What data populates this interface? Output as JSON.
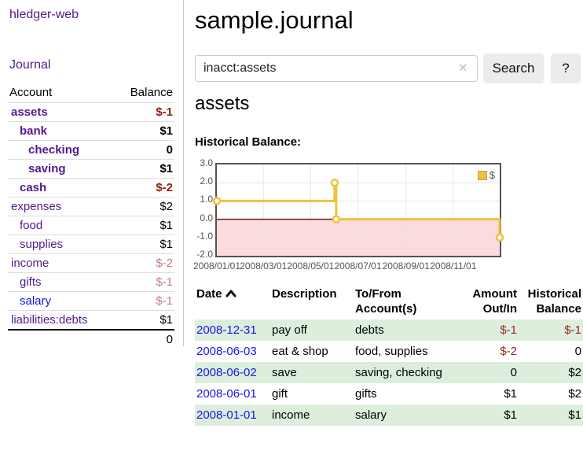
{
  "sidebar": {
    "app_title": "hledger-web",
    "journal_link": "Journal",
    "table": {
      "account_header": "Account",
      "balance_header": "Balance",
      "accounts": [
        {
          "name": "assets",
          "indent": 0,
          "bold": true,
          "balance": "$-1",
          "balance_style": "neg"
        },
        {
          "name": "bank",
          "indent": 1,
          "bold": true,
          "balance": "$1",
          "balance_style": ""
        },
        {
          "name": "checking",
          "indent": 2,
          "bold": true,
          "balance": "0",
          "balance_style": ""
        },
        {
          "name": "saving",
          "indent": 2,
          "bold": true,
          "balance": "$1",
          "balance_style": ""
        },
        {
          "name": "cash",
          "indent": 1,
          "bold": true,
          "balance": "$-2",
          "balance_style": "neg"
        },
        {
          "name": "expenses",
          "indent": 0,
          "bold": false,
          "balance": "$2",
          "balance_style": ""
        },
        {
          "name": "food",
          "indent": 1,
          "bold": false,
          "balance": "$1",
          "balance_style": ""
        },
        {
          "name": "supplies",
          "indent": 1,
          "bold": false,
          "balance": "$1",
          "balance_style": ""
        },
        {
          "name": "income",
          "indent": 0,
          "bold": false,
          "balance": "$-2",
          "balance_style": "neg-soft"
        },
        {
          "name": "gifts",
          "indent": 1,
          "bold": false,
          "balance": "$-1",
          "balance_style": "neg-soft"
        },
        {
          "name": "salary",
          "indent": 1,
          "bold": false,
          "balance": "$-1",
          "balance_style": "neg-soft",
          "link_blue": true
        },
        {
          "name": "liabilities:debts",
          "indent": 0,
          "bold": false,
          "balance": "$1",
          "balance_style": ""
        }
      ],
      "total": "0"
    }
  },
  "main": {
    "title": "sample.journal",
    "search": {
      "value": "inacct:assets",
      "clear_icon": "×",
      "search_button": "Search",
      "help_button": "?"
    },
    "account_heading": "assets",
    "chart_title": "Historical Balance:"
  },
  "chart_data": {
    "type": "line",
    "step": true,
    "title": "Historical Balance:",
    "ylim": [
      -2,
      3
    ],
    "yticks": [
      {
        "v": 3,
        "label": "3.0"
      },
      {
        "v": 2,
        "label": "2.0"
      },
      {
        "v": 1,
        "label": "1.0"
      },
      {
        "v": 0,
        "label": "0.0"
      },
      {
        "v": -1,
        "label": "-1.0"
      },
      {
        "v": -2,
        "label": "-2.0"
      }
    ],
    "xticks": [
      {
        "pos": 0.0,
        "label": "2008/01/01"
      },
      {
        "pos": 0.1644,
        "label": "2008/03/01"
      },
      {
        "pos": 0.3315,
        "label": "2008/05/01"
      },
      {
        "pos": 0.4986,
        "label": "2008/07/01"
      },
      {
        "pos": 0.6685,
        "label": "2008/09/01"
      },
      {
        "pos": 0.8356,
        "label": "2008/11/01"
      }
    ],
    "series": [
      {
        "name": "$",
        "color": "#edc240",
        "points": [
          {
            "x": 0.0,
            "y": 1
          },
          {
            "x": 0.4164,
            "y": 2
          },
          {
            "x": 0.4219,
            "y": 0
          },
          {
            "x": 1.0,
            "y": -1
          }
        ]
      }
    ],
    "zero_line_color": "#7c1313",
    "negative_region_color": "#fbdbdb",
    "grid_color": "#e6e6e6",
    "legend_position": "top-right"
  },
  "transactions": {
    "headers": {
      "date": "Date",
      "description": "Description",
      "accounts": "To/From Account(s)",
      "amount": "Amount Out/In",
      "balance": "Historical Balance"
    },
    "rows": [
      {
        "date": "2008-12-31",
        "description": "pay off",
        "accounts": "debts",
        "amount": "$-1",
        "amount_style": "neg",
        "balance": "$-1",
        "balance_style": "neg"
      },
      {
        "date": "2008-06-03",
        "description": "eat & shop",
        "accounts": "food, supplies",
        "amount": "$-2",
        "amount_style": "neg",
        "balance": "0",
        "balance_style": ""
      },
      {
        "date": "2008-06-02",
        "description": "save",
        "accounts": "saving, checking",
        "amount": "0",
        "amount_style": "",
        "balance": "$2",
        "balance_style": ""
      },
      {
        "date": "2008-06-01",
        "description": "gift",
        "accounts": "gifts",
        "amount": "$1",
        "amount_style": "",
        "balance": "$2",
        "balance_style": ""
      },
      {
        "date": "2008-01-01",
        "description": "income",
        "accounts": "salary",
        "amount": "$1",
        "amount_style": "",
        "balance": "$1",
        "balance_style": ""
      }
    ]
  },
  "colors": {
    "link_purple": "#551a8b",
    "link_blue": "#1515e8",
    "negative_strong": "#8b1d12",
    "negative_soft": "#c47e7e",
    "row_green": "#ddeedd",
    "series_gold": "#edc240",
    "axis_text": "#545454"
  }
}
